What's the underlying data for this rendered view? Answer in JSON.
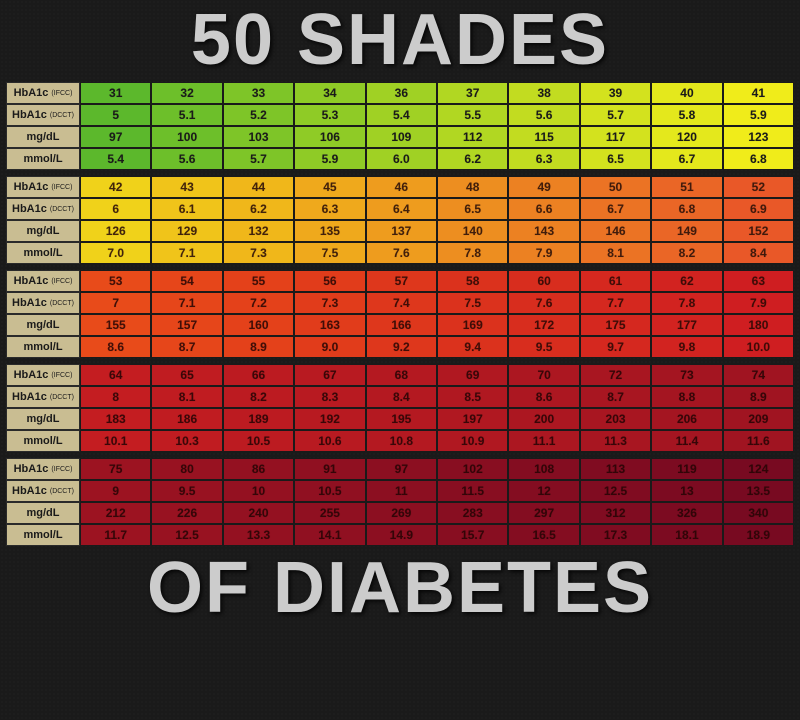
{
  "title_top": "50 SHADES",
  "title_bottom": "OF DIABETES",
  "background_color": "#1a1a1a",
  "title_color": "#cccccc",
  "title_fontsize": 72,
  "label_bg": "#c9bd92",
  "cell_border": "#1a1a1a",
  "row_labels": [
    {
      "main": "HbA1c",
      "sub": "(IFCC)"
    },
    {
      "main": "HbA1c",
      "sub": "(DCCT)"
    },
    {
      "main": "mg/dL",
      "sub": ""
    },
    {
      "main": "mmol/L",
      "sub": ""
    }
  ],
  "sections": [
    {
      "tint": "a",
      "rows": [
        [
          "31",
          "32",
          "33",
          "34",
          "36",
          "37",
          "38",
          "39",
          "40",
          "41"
        ],
        [
          "5",
          "5.1",
          "5.2",
          "5.3",
          "5.4",
          "5.5",
          "5.6",
          "5.7",
          "5.8",
          "5.9"
        ],
        [
          "97",
          "100",
          "103",
          "106",
          "109",
          "112",
          "115",
          "117",
          "120",
          "123"
        ],
        [
          "5.4",
          "5.6",
          "5.7",
          "5.9",
          "6.0",
          "6.2",
          "6.3",
          "6.5",
          "6.7",
          "6.8"
        ]
      ],
      "colors": [
        "#5cb82c",
        "#6dbf2a",
        "#7ec528",
        "#8fcb26",
        "#a0d124",
        "#b1d722",
        "#c2dc20",
        "#d3e21e",
        "#e4e81c",
        "#f0ec1a"
      ]
    },
    {
      "tint": "b",
      "rows": [
        [
          "42",
          "43",
          "44",
          "45",
          "46",
          "48",
          "49",
          "50",
          "51",
          "52"
        ],
        [
          "6",
          "6.1",
          "6.2",
          "6.3",
          "6.4",
          "6.5",
          "6.6",
          "6.7",
          "6.8",
          "6.9"
        ],
        [
          "126",
          "129",
          "132",
          "135",
          "137",
          "140",
          "143",
          "146",
          "149",
          "152"
        ],
        [
          "7.0",
          "7.1",
          "7.3",
          "7.5",
          "7.6",
          "7.8",
          "7.9",
          "8.1",
          "8.2",
          "8.4"
        ]
      ],
      "colors": [
        "#f0d21a",
        "#f0c41a",
        "#f0b71a",
        "#efa91c",
        "#ee9c1e",
        "#ed8e20",
        "#ec8122",
        "#eb7324",
        "#ea6626",
        "#e95828"
      ]
    },
    {
      "tint": "c",
      "rows": [
        [
          "53",
          "54",
          "55",
          "56",
          "57",
          "58",
          "60",
          "61",
          "62",
          "63"
        ],
        [
          "7",
          "7.1",
          "7.2",
          "7.3",
          "7.4",
          "7.5",
          "7.6",
          "7.7",
          "7.8",
          "7.9"
        ],
        [
          "155",
          "157",
          "160",
          "163",
          "166",
          "169",
          "172",
          "175",
          "177",
          "180"
        ],
        [
          "8.6",
          "8.7",
          "8.9",
          "9.0",
          "9.2",
          "9.4",
          "9.5",
          "9.7",
          "9.8",
          "10.0"
        ]
      ],
      "colors": [
        "#e84b1a",
        "#e6461a",
        "#e4411a",
        "#e13c1b",
        "#de371c",
        "#db321d",
        "#d82d1e",
        "#d5281f",
        "#d22320",
        "#cf1e21"
      ]
    },
    {
      "tint": "d",
      "rows": [
        [
          "64",
          "65",
          "66",
          "67",
          "68",
          "69",
          "70",
          "72",
          "73",
          "74"
        ],
        [
          "8",
          "8.1",
          "8.2",
          "8.3",
          "8.4",
          "8.5",
          "8.6",
          "8.7",
          "8.8",
          "8.9"
        ],
        [
          "183",
          "186",
          "189",
          "192",
          "195",
          "197",
          "200",
          "203",
          "206",
          "209"
        ],
        [
          "10.1",
          "10.3",
          "10.5",
          "10.6",
          "10.8",
          "10.9",
          "11.1",
          "11.3",
          "11.4",
          "11.6"
        ]
      ],
      "colors": [
        "#c41d21",
        "#c01c21",
        "#bc1b21",
        "#b81a21",
        "#b41921",
        "#b01821",
        "#ac1721",
        "#a81621",
        "#a41521",
        "#a01421"
      ]
    },
    {
      "tint": "e",
      "rows": [
        [
          "75",
          "80",
          "86",
          "91",
          "97",
          "102",
          "108",
          "113",
          "119",
          "124"
        ],
        [
          "9",
          "9.5",
          "10",
          "10.5",
          "11",
          "11.5",
          "12",
          "12.5",
          "13",
          "13.5"
        ],
        [
          "212",
          "226",
          "240",
          "255",
          "269",
          "283",
          "297",
          "312",
          "326",
          "340"
        ],
        [
          "11.7",
          "12.5",
          "13.3",
          "14.1",
          "14.9",
          "15.7",
          "16.5",
          "17.3",
          "18.1",
          "18.9"
        ]
      ],
      "colors": [
        "#9c1321",
        "#981221",
        "#941121",
        "#901021",
        "#8c0f21",
        "#880e21",
        "#840d21",
        "#800c21",
        "#7c0b21",
        "#780a21"
      ]
    }
  ]
}
